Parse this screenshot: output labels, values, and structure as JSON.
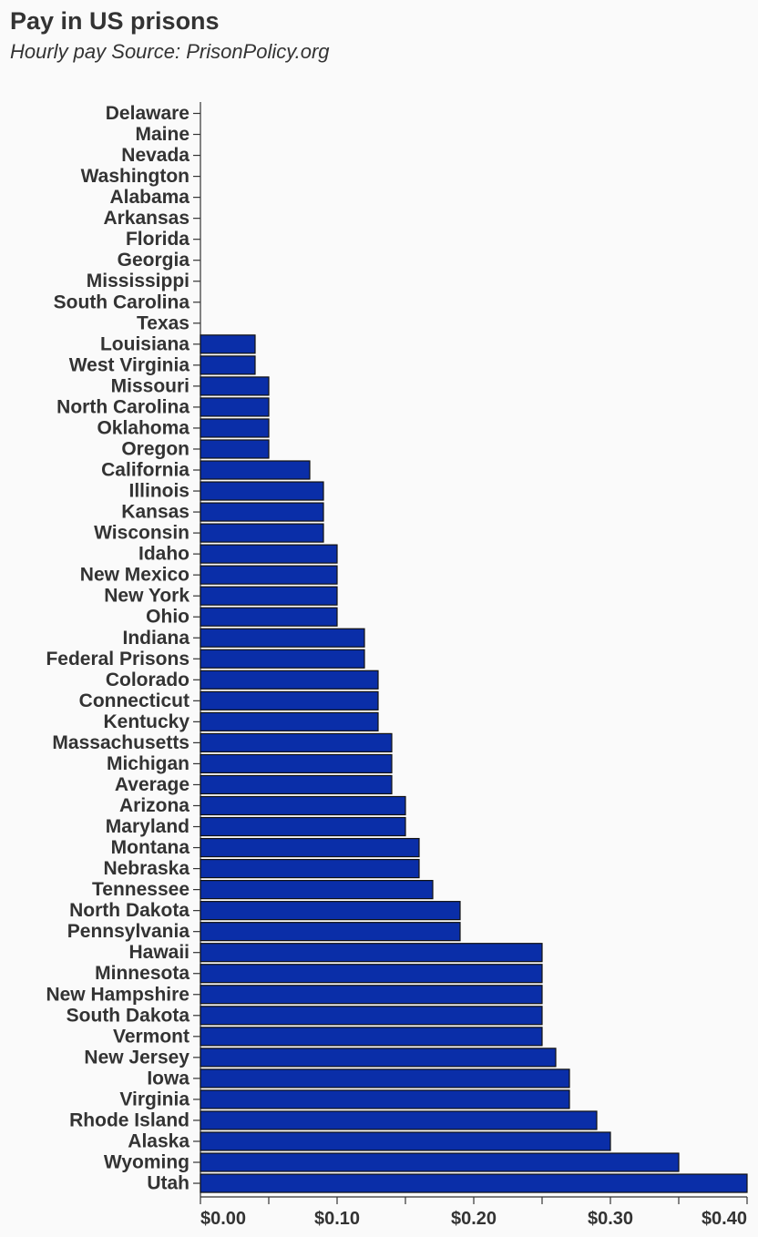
{
  "chart_data": {
    "type": "bar",
    "orientation": "horizontal",
    "title": "Pay in US prisons",
    "subtitle": "Hourly pay Source: PrisonPolicy.org",
    "xlim": [
      0,
      0.4
    ],
    "x_ticks": [
      0,
      0.05,
      0.1,
      0.15,
      0.2,
      0.25,
      0.3,
      0.35,
      0.4
    ],
    "x_tick_labels": [
      "$0.00",
      "",
      "$0.10",
      "",
      "$0.20",
      "",
      "$0.30",
      "",
      "$0.40"
    ],
    "bar_color": "#0a2ea8",
    "bar_edge_color": "#111111",
    "grid": false,
    "categories": [
      "Delaware",
      "Maine",
      "Nevada",
      "Washington",
      "Alabama",
      "Arkansas",
      "Florida",
      "Georgia",
      "Mississippi",
      "South Carolina",
      "Texas",
      "Louisiana",
      "West Virginia",
      "Missouri",
      "North Carolina",
      "Oklahoma",
      "Oregon",
      "California",
      "Illinois",
      "Kansas",
      "Wisconsin",
      "Idaho",
      "New Mexico",
      "New York",
      "Ohio",
      "Indiana",
      "Federal Prisons",
      "Colorado",
      "Connecticut",
      "Kentucky",
      "Massachusetts",
      "Michigan",
      "Average",
      "Arizona",
      "Maryland",
      "Montana",
      "Nebraska",
      "Tennessee",
      "North Dakota",
      "Pennsylvania",
      "Hawaii",
      "Minnesota",
      "New Hampshire",
      "South Dakota",
      "Vermont",
      "New Jersey",
      "Iowa",
      "Virginia",
      "Rhode Island",
      "Alaska",
      "Wyoming",
      "Utah"
    ],
    "values": [
      0,
      0,
      0,
      0,
      0,
      0,
      0,
      0,
      0,
      0,
      0,
      0.04,
      0.04,
      0.05,
      0.05,
      0.05,
      0.05,
      0.08,
      0.09,
      0.09,
      0.09,
      0.1,
      0.1,
      0.1,
      0.1,
      0.12,
      0.12,
      0.13,
      0.13,
      0.13,
      0.14,
      0.14,
      0.14,
      0.15,
      0.15,
      0.16,
      0.16,
      0.17,
      0.19,
      0.19,
      0.25,
      0.25,
      0.25,
      0.25,
      0.25,
      0.26,
      0.27,
      0.27,
      0.29,
      0.3,
      0.35,
      0.4
    ]
  }
}
